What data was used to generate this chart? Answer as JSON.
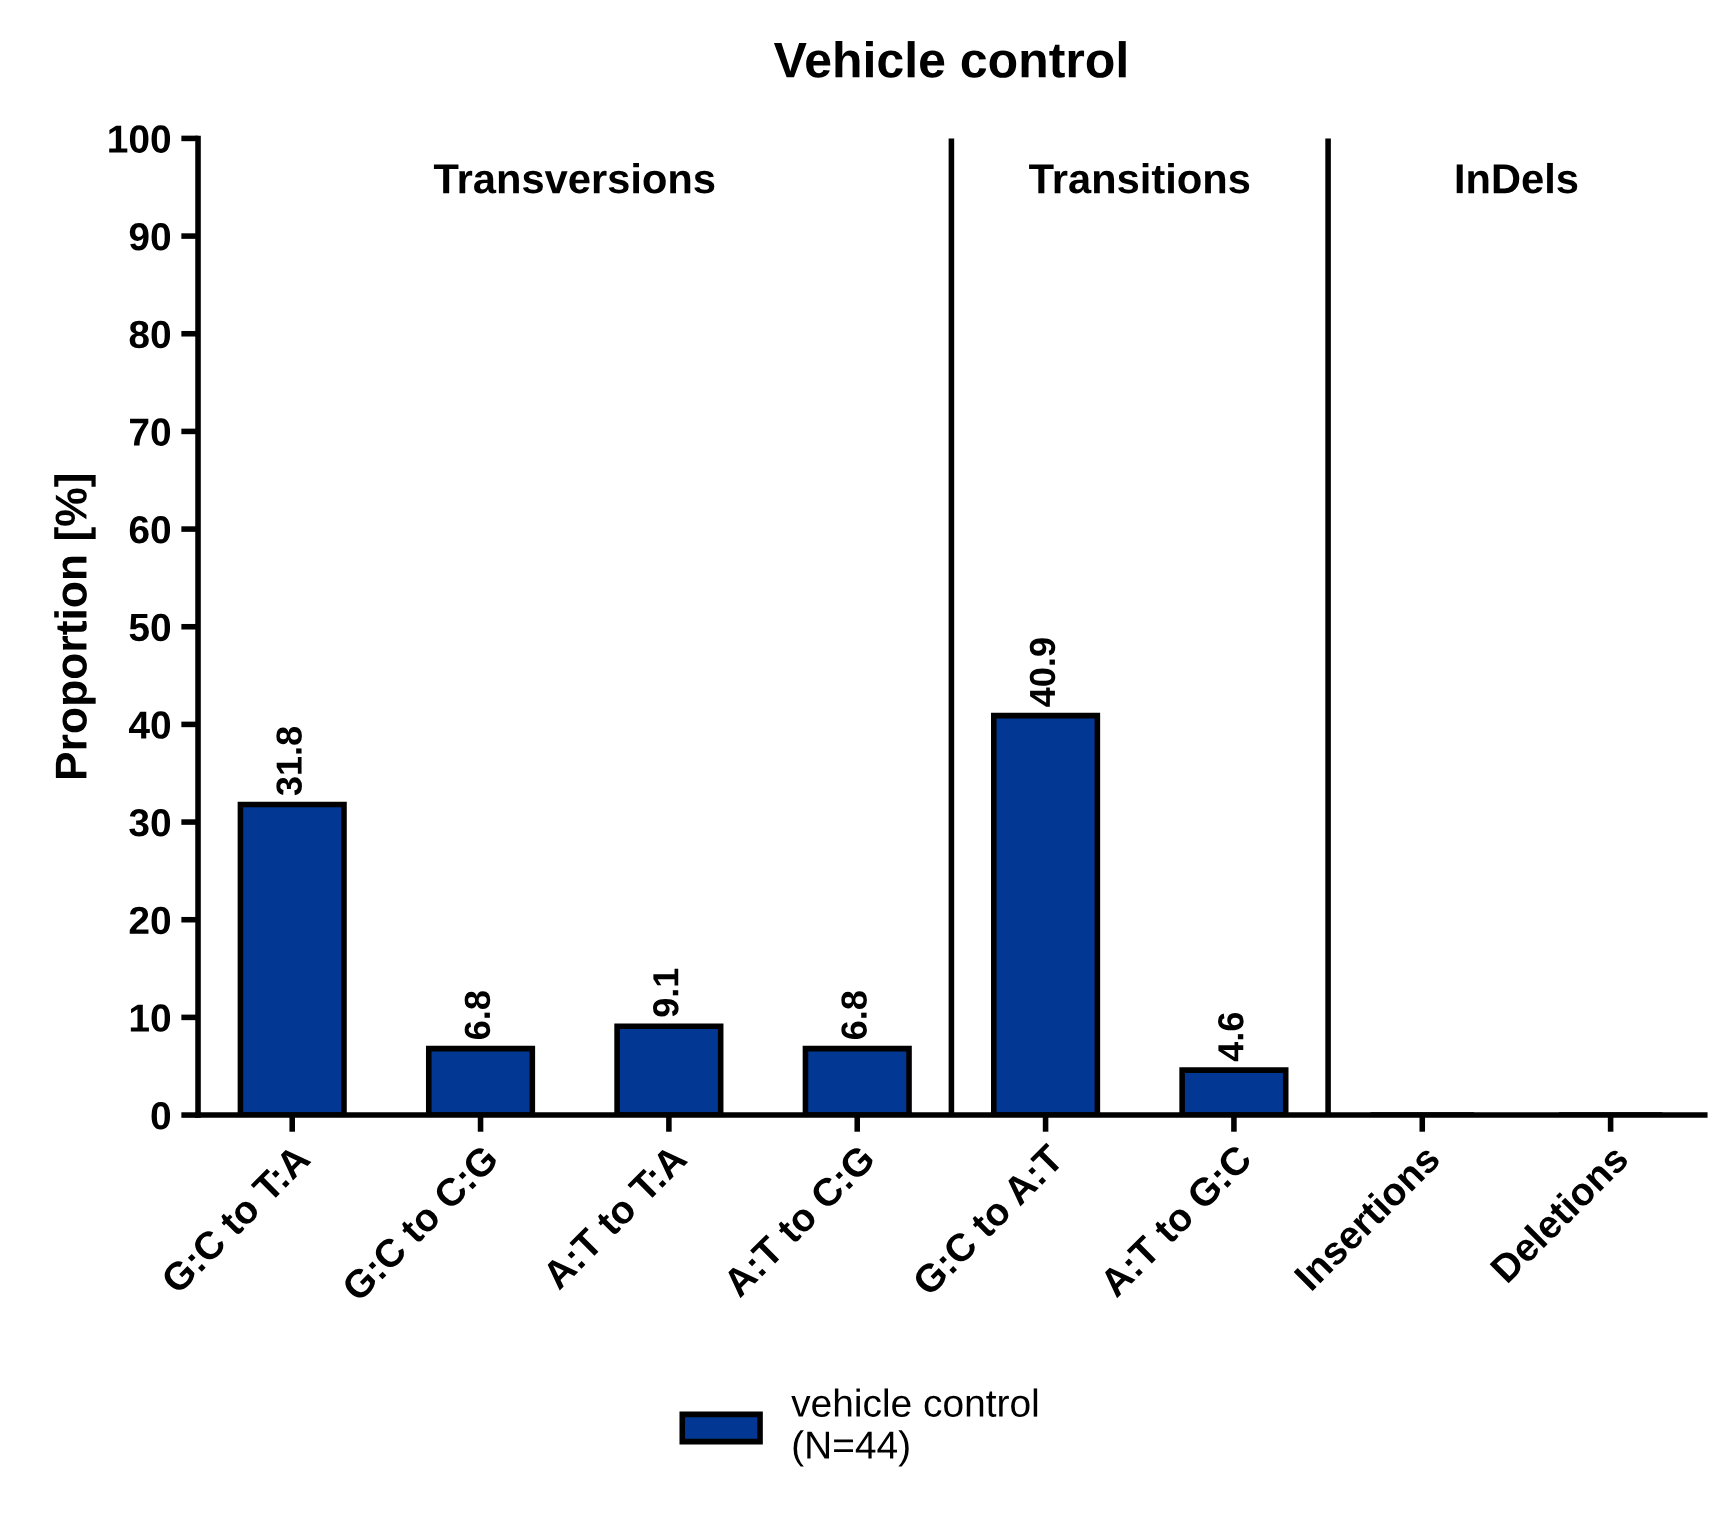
{
  "chart_data": {
    "type": "bar",
    "title": "Vehicle control",
    "ylabel": "Proportion [%]",
    "categories": [
      "G:C to T:A",
      "G:C to C:G",
      "A:T to T:A",
      "A:T to C:G",
      "G:C to A:T",
      "A:T to G:C",
      "Insertions",
      "Deletions"
    ],
    "series": [
      {
        "name": "vehicle control\n(N=44)",
        "color": "#023793",
        "values": [
          31.8,
          6.8,
          9.1,
          6.8,
          40.9,
          4.6,
          0,
          0
        ],
        "value_labels": [
          "31.8",
          "6.8",
          "9.1",
          "6.8",
          "40.9",
          "4.6",
          null,
          null
        ]
      }
    ],
    "ylim": [
      0,
      100
    ],
    "yticks": [
      0,
      10,
      20,
      30,
      40,
      50,
      60,
      70,
      80,
      90,
      100
    ],
    "annotations": [
      "Transversions",
      "Transitions",
      "InDels"
    ],
    "grid": false,
    "legend": "bottom"
  }
}
